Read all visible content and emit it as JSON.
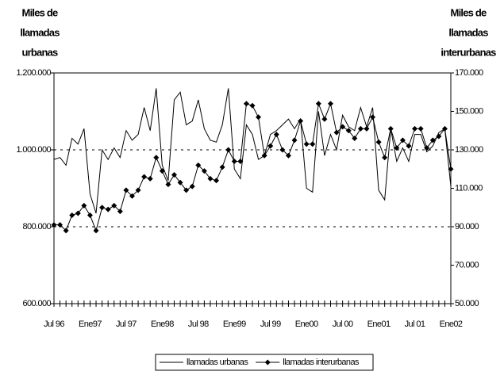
{
  "chart_data": {
    "type": "line",
    "y_label": [
      "Miles de",
      "llamadas",
      "urbanas"
    ],
    "y2_label": [
      "Miles de",
      "llamadas",
      "interurbanas"
    ],
    "categories": [
      "Jul 96",
      null,
      null,
      null,
      null,
      null,
      "Ene97",
      null,
      null,
      null,
      null,
      null,
      "Jul 97",
      null,
      null,
      null,
      null,
      null,
      "Ene98",
      null,
      null,
      null,
      null,
      null,
      "Jul 98",
      null,
      null,
      null,
      null,
      null,
      "Ene99",
      null,
      null,
      null,
      null,
      null,
      "Jul 99",
      null,
      null,
      null,
      null,
      null,
      "Ene00",
      null,
      null,
      null,
      null,
      null,
      "Jul 00",
      null,
      null,
      null,
      null,
      null,
      "Ene01",
      null,
      null,
      null,
      null,
      null,
      "Jul 01",
      null,
      null,
      null,
      null,
      null,
      "Ene02"
    ],
    "ylim": [
      600000,
      1200000
    ],
    "yticks": [
      {
        "value": 600000,
        "label": "600.000"
      },
      {
        "value": 800000,
        "label": "800.000"
      },
      {
        "value": 1000000,
        "label": "1.000.000"
      },
      {
        "value": 1200000,
        "label": "1.200.000"
      }
    ],
    "y2lim": [
      50000,
      170000
    ],
    "y2ticks": [
      {
        "value": 50000,
        "label": "50.000"
      },
      {
        "value": 70000,
        "label": "70.000"
      },
      {
        "value": 90000,
        "label": "90.000"
      },
      {
        "value": 110000,
        "label": "110.000"
      },
      {
        "value": 130000,
        "label": "130.000"
      },
      {
        "value": 150000,
        "label": "150.000"
      },
      {
        "value": 170000,
        "label": "170.000"
      }
    ],
    "grid": true,
    "legend": "bottom",
    "series": [
      {
        "name": "llamadas urbanas",
        "color": "#000000",
        "marker": "none",
        "values": [
          975000,
          980000,
          960000,
          1030000,
          1015000,
          1055000,
          885000,
          835000,
          1000000,
          975000,
          1005000,
          980000,
          1050000,
          1025000,
          1040000,
          1110000,
          1050000,
          1160000,
          960000,
          920000,
          1130000,
          1150000,
          1065000,
          1075000,
          1130000,
          1055000,
          1025000,
          1020000,
          1065000,
          1160000,
          950000,
          925000,
          1065000,
          1040000,
          975000,
          985000,
          1040000,
          1050000,
          1065000,
          1080000,
          1055000,
          1080000,
          900000,
          890000,
          1100000,
          985000,
          1040000,
          1000000,
          1090000,
          1060000,
          1050000,
          1110000,
          1060000,
          1110000,
          895000,
          870000,
          1055000,
          970000,
          1005000,
          970000,
          1040000,
          1040000,
          995000,
          1010000,
          1045000,
          1055000,
          905000
        ]
      },
      {
        "name": "llamadas interurbanas",
        "color": "#000000",
        "marker": "diamond",
        "axis": "y2",
        "values": [
          91000,
          91000,
          88000,
          96000,
          97000,
          101000,
          96000,
          88000,
          100000,
          99000,
          101000,
          98000,
          109000,
          106000,
          109000,
          116000,
          115000,
          126000,
          119000,
          112000,
          117000,
          113000,
          109000,
          111000,
          122000,
          119000,
          115000,
          114000,
          121000,
          130000,
          124000,
          124000,
          154000,
          153000,
          147000,
          127000,
          132000,
          138000,
          130000,
          127000,
          135000,
          145000,
          133000,
          133000,
          154000,
          146000,
          154000,
          139000,
          142000,
          140000,
          136000,
          141000,
          141000,
          147000,
          134000,
          126000,
          141000,
          131000,
          135000,
          132000,
          141000,
          141000,
          131000,
          135000,
          137000,
          141000,
          120000
        ]
      }
    ]
  }
}
